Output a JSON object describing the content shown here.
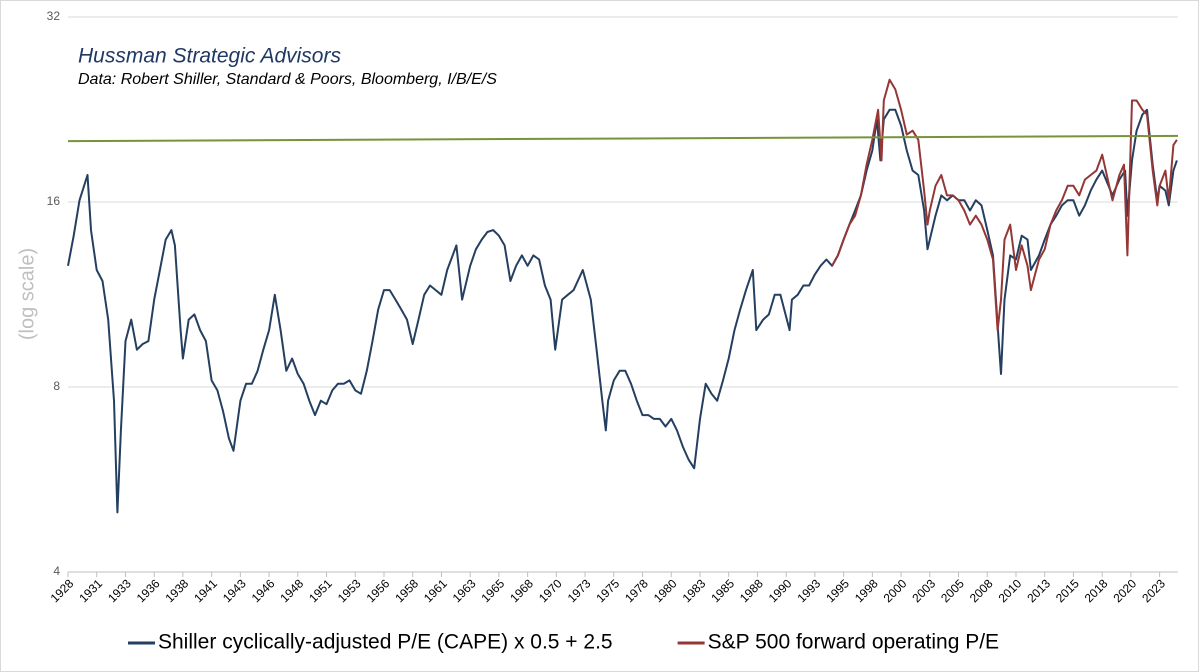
{
  "chart_data": {
    "type": "line",
    "title": "Hussman Strategic Advisors",
    "subtitle": "Data: Robert Shiller, Standard & Poors, Bloomberg, I/B/E/S",
    "y_label": "(log scale)",
    "log_scale": true,
    "grid": true,
    "legend": "bottom",
    "xlim": [
      1928,
      2024.6
    ],
    "ylim": [
      4,
      32
    ],
    "yticks": [
      4,
      8,
      16,
      32
    ],
    "xticks": [
      1928,
      {
        "value": 1930.5,
        "label": "1931"
      },
      1933,
      {
        "value": 1935.5,
        "label": "1936"
      },
      1938,
      {
        "value": 1940.5,
        "label": "1941"
      },
      1943,
      {
        "value": 1945.5,
        "label": "1946"
      },
      1948,
      {
        "value": 1950.5,
        "label": "1951"
      },
      1953,
      {
        "value": 1955.5,
        "label": "1956"
      },
      1958,
      {
        "value": 1960.5,
        "label": "1961"
      },
      1963,
      {
        "value": 1965.5,
        "label": "1965"
      },
      1968,
      {
        "value": 1970.5,
        "label": "1970"
      },
      1973,
      {
        "value": 1975.5,
        "label": "1975"
      },
      1978,
      {
        "value": 1980.5,
        "label": "1980"
      },
      1983,
      {
        "value": 1985.5,
        "label": "1985"
      },
      1988,
      {
        "value": 1990.5,
        "label": "1990"
      },
      1993,
      {
        "value": 1995.5,
        "label": "1995"
      },
      1998,
      {
        "value": 2000.5,
        "label": "2000"
      },
      2003,
      {
        "value": 2005.5,
        "label": "2005"
      },
      2008,
      {
        "value": 2010.5,
        "label": "2010"
      },
      2013,
      {
        "value": 2015.5,
        "label": "2015"
      },
      2018,
      {
        "value": 2020.5,
        "label": "2020"
      },
      2023
    ],
    "series": [
      {
        "name": "Shiller cyclically-adjusted P/E (CAPE) x 0.5 + 2.5",
        "color": "#243f60",
        "x": [
          1928.0,
          1928.5,
          1929.0,
          1929.7,
          1930.0,
          1930.5,
          1931.0,
          1931.5,
          1932.0,
          1932.3,
          1932.6,
          1933.0,
          1933.5,
          1934.0,
          1934.5,
          1935.0,
          1935.5,
          1936.0,
          1936.5,
          1937.0,
          1937.3,
          1937.8,
          1938.0,
          1938.5,
          1939.0,
          1939.5,
          1940.0,
          1940.5,
          1941.0,
          1941.5,
          1942.0,
          1942.4,
          1943.0,
          1943.5,
          1944.0,
          1944.5,
          1945.0,
          1945.5,
          1946.0,
          1946.5,
          1947.0,
          1947.5,
          1948.0,
          1948.5,
          1949.0,
          1949.5,
          1950.0,
          1950.5,
          1951.0,
          1951.5,
          1952.0,
          1952.5,
          1953.0,
          1953.5,
          1954.0,
          1954.5,
          1955.0,
          1955.5,
          1956.0,
          1956.5,
          1957.0,
          1957.5,
          1958.0,
          1958.5,
          1959.0,
          1959.5,
          1960.0,
          1960.5,
          1961.0,
          1961.8,
          1962.3,
          1963.0,
          1963.5,
          1964.0,
          1964.5,
          1965.0,
          1965.5,
          1966.0,
          1966.5,
          1967.0,
          1967.5,
          1968.0,
          1968.5,
          1969.0,
          1969.5,
          1970.0,
          1970.4,
          1971.0,
          1971.5,
          1972.0,
          1972.8,
          1973.5,
          1974.0,
          1974.5,
          1974.8,
          1975.0,
          1975.5,
          1976.0,
          1976.5,
          1977.0,
          1977.5,
          1978.0,
          1978.5,
          1979.0,
          1979.5,
          1980.0,
          1980.5,
          1981.0,
          1981.5,
          1982.0,
          1982.5,
          1983.0,
          1983.5,
          1984.0,
          1984.5,
          1985.0,
          1985.5,
          1986.0,
          1986.5,
          1987.0,
          1987.6,
          1987.9,
          1988.5,
          1989.0,
          1989.5,
          1990.0,
          1990.8,
          1991.0,
          1991.5,
          1992.0,
          1992.5,
          1993.0,
          1993.5,
          1994.0,
          1994.5,
          1995.0,
          1995.5,
          1996.0,
          1996.5,
          1997.0,
          1997.5,
          1998.0,
          1998.4,
          1998.7,
          1999.0,
          1999.5,
          2000.0,
          2000.5,
          2001.0,
          2001.5,
          2002.0,
          2002.5,
          2002.8,
          2003.0,
          2003.5,
          2004.0,
          2004.5,
          2005.0,
          2005.5,
          2006.0,
          2006.5,
          2007.0,
          2007.5,
          2008.0,
          2008.5,
          2009.0,
          2009.2,
          2009.5,
          2010.0,
          2010.5,
          2011.0,
          2011.5,
          2011.8,
          2012.5,
          2013.0,
          2013.5,
          2014.0,
          2014.5,
          2015.0,
          2015.5,
          2016.0,
          2016.5,
          2017.0,
          2017.5,
          2018.0,
          2018.9,
          2019.5,
          2020.0,
          2020.2,
          2020.6,
          2021.0,
          2021.5,
          2021.9,
          2022.4,
          2022.8,
          2023.0,
          2023.5,
          2023.8,
          2024.2,
          2024.5
        ],
        "values": [
          12.6,
          14.1,
          16.1,
          17.7,
          14.4,
          12.4,
          11.9,
          10.3,
          7.6,
          5.0,
          6.8,
          9.5,
          10.3,
          9.2,
          9.4,
          9.5,
          11.1,
          12.4,
          13.9,
          14.4,
          13.6,
          9.9,
          8.9,
          10.3,
          10.5,
          9.9,
          9.5,
          8.2,
          7.9,
          7.3,
          6.6,
          6.3,
          7.6,
          8.1,
          8.1,
          8.5,
          9.2,
          9.9,
          11.3,
          9.9,
          8.5,
          8.9,
          8.4,
          8.1,
          7.6,
          7.2,
          7.6,
          7.5,
          7.9,
          8.1,
          8.1,
          8.2,
          7.9,
          7.8,
          8.5,
          9.5,
          10.7,
          11.5,
          11.5,
          11.1,
          10.7,
          10.3,
          9.4,
          10.3,
          11.3,
          11.7,
          11.5,
          11.3,
          12.4,
          13.6,
          11.1,
          12.6,
          13.4,
          13.9,
          14.3,
          14.4,
          14.1,
          13.6,
          11.9,
          12.6,
          13.1,
          12.6,
          13.1,
          12.9,
          11.7,
          11.1,
          9.2,
          11.1,
          11.3,
          11.5,
          12.4,
          11.1,
          9.2,
          7.6,
          6.8,
          7.6,
          8.2,
          8.5,
          8.5,
          8.1,
          7.6,
          7.2,
          7.2,
          7.1,
          7.1,
          6.9,
          7.1,
          6.8,
          6.4,
          6.1,
          5.9,
          7.1,
          8.1,
          7.8,
          7.6,
          8.2,
          8.9,
          9.9,
          10.7,
          11.5,
          12.4,
          9.9,
          10.3,
          10.5,
          11.3,
          11.3,
          9.9,
          11.1,
          11.3,
          11.7,
          11.7,
          12.2,
          12.6,
          12.9,
          12.6,
          13.1,
          13.9,
          14.7,
          15.5,
          16.4,
          18.0,
          19.4,
          21.8,
          18.7,
          21.8,
          22.6,
          22.6,
          21.3,
          19.4,
          18.0,
          17.7,
          15.5,
          13.4,
          13.9,
          15.2,
          16.4,
          16.1,
          16.4,
          16.1,
          16.1,
          15.5,
          16.1,
          15.8,
          14.4,
          13.1,
          9.5,
          8.4,
          11.1,
          13.1,
          12.9,
          14.1,
          13.9,
          12.4,
          13.1,
          13.9,
          14.7,
          15.2,
          15.8,
          16.1,
          16.1,
          15.2,
          15.8,
          16.7,
          17.4,
          18.0,
          16.4,
          17.4,
          18.0,
          15.2,
          18.7,
          20.9,
          22.2,
          22.6,
          18.4,
          16.1,
          17.0,
          16.7,
          15.8,
          18.0,
          18.7
        ]
      },
      {
        "name": "S&P 500 forward operating P/E",
        "color": "#953735",
        "x": [
          1994.5,
          1995.0,
          1995.5,
          1996.0,
          1996.5,
          1997.0,
          1997.5,
          1998.0,
          1998.5,
          1998.8,
          1999.0,
          1999.5,
          2000.0,
          2000.5,
          2001.0,
          2001.5,
          2002.0,
          2002.5,
          2002.8,
          2003.0,
          2003.5,
          2004.0,
          2004.5,
          2005.0,
          2005.5,
          2006.0,
          2006.5,
          2007.0,
          2007.5,
          2008.0,
          2008.5,
          2008.9,
          2009.2,
          2009.5,
          2010.0,
          2010.5,
          2011.0,
          2011.5,
          2011.8,
          2012.5,
          2013.0,
          2013.5,
          2014.0,
          2014.5,
          2015.0,
          2015.5,
          2016.0,
          2016.5,
          2017.0,
          2017.5,
          2018.0,
          2018.9,
          2019.5,
          2019.9,
          2020.2,
          2020.6,
          2021.0,
          2021.5,
          2021.9,
          2022.4,
          2022.8,
          2023.0,
          2023.5,
          2023.8,
          2024.2,
          2024.5
        ],
        "values": [
          12.6,
          13.1,
          13.9,
          14.7,
          15.2,
          16.4,
          18.4,
          20.2,
          22.6,
          18.7,
          23.4,
          25.3,
          24.4,
          22.6,
          20.6,
          20.9,
          20.2,
          16.7,
          14.7,
          15.5,
          17.0,
          17.7,
          16.4,
          16.4,
          16.1,
          15.5,
          14.7,
          15.2,
          14.7,
          13.9,
          12.9,
          9.9,
          11.1,
          13.9,
          14.7,
          12.4,
          13.6,
          12.6,
          11.5,
          12.9,
          13.4,
          14.7,
          15.5,
          16.1,
          17.0,
          17.0,
          16.4,
          17.4,
          17.7,
          18.0,
          19.1,
          16.1,
          17.7,
          18.4,
          13.1,
          23.4,
          23.4,
          22.6,
          22.2,
          18.0,
          15.8,
          17.0,
          18.0,
          16.1,
          19.8,
          20.2
        ]
      },
      {
        "color": "#77933c",
        "x": [
          1928,
          2024.6
        ],
        "values": [
          20.1,
          20.5
        ]
      }
    ]
  }
}
